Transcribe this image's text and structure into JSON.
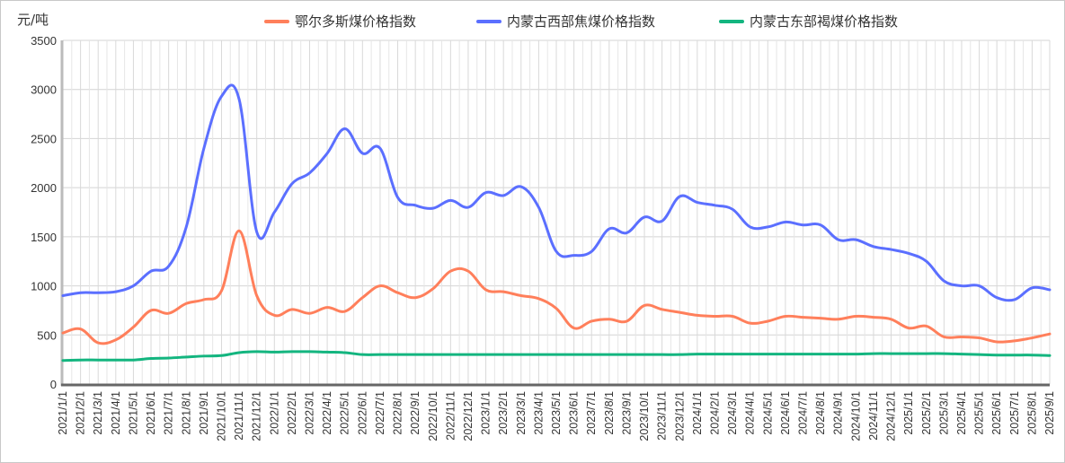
{
  "chart_data": {
    "type": "line",
    "ylabel": "元/吨",
    "ylim": [
      0,
      3500
    ],
    "yticks": [
      0,
      500,
      1000,
      1500,
      2000,
      2500,
      3000,
      3500
    ],
    "grid": true,
    "legend_position": "top",
    "categories": [
      "2021/1/1",
      "2021/2/1",
      "2021/3/1",
      "2021/4/1",
      "2021/5/1",
      "2021/6/1",
      "2021/7/1",
      "2021/8/1",
      "2021/9/1",
      "2021/10/1",
      "2021/11/1",
      "2021/12/1",
      "2022/1/1",
      "2022/2/1",
      "2022/3/1",
      "2022/4/1",
      "2022/5/1",
      "2022/6/1",
      "2022/7/1",
      "2022/8/1",
      "2022/9/1",
      "2022/10/1",
      "2022/11/1",
      "2022/12/1",
      "2023/1/1",
      "2023/2/1",
      "2023/3/1",
      "2023/4/1",
      "2023/5/1",
      "2023/6/1",
      "2023/7/1",
      "2023/8/1",
      "2023/9/1",
      "2023/10/1",
      "2023/11/1",
      "2023/12/1",
      "2024/1/1",
      "2024/2/1",
      "2024/3/1",
      "2024/4/1",
      "2024/5/1",
      "2024/6/1",
      "2024/7/1",
      "2024/8/1",
      "2024/9/1",
      "2024/10/1",
      "2024/11/1",
      "2024/12/1",
      "2025/1/1",
      "2025/2/1",
      "2025/3/1",
      "2025/4/1",
      "2025/5/1",
      "2025/6/1",
      "2025/7/1",
      "2025/8/1",
      "2025/9/1"
    ],
    "series": [
      {
        "name": "鄂尔多斯煤价格指数",
        "color": "#FF7F5B",
        "values": [
          520,
          560,
          420,
          450,
          580,
          750,
          720,
          820,
          860,
          950,
          1560,
          900,
          700,
          760,
          720,
          780,
          740,
          880,
          1000,
          930,
          880,
          970,
          1150,
          1150,
          960,
          940,
          900,
          870,
          770,
          570,
          640,
          660,
          640,
          800,
          760,
          730,
          700,
          690,
          690,
          620,
          640,
          690,
          680,
          670,
          660,
          690,
          680,
          660,
          570,
          590,
          480,
          480,
          470,
          430,
          440,
          470,
          510
        ]
      },
      {
        "name": "内蒙古西部焦煤价格指数",
        "color": "#5B6FFF",
        "values": [
          900,
          930,
          930,
          940,
          1000,
          1150,
          1200,
          1600,
          2400,
          2930,
          2900,
          1550,
          1750,
          2040,
          2150,
          2350,
          2600,
          2350,
          2400,
          1900,
          1820,
          1790,
          1870,
          1800,
          1950,
          1920,
          2010,
          1800,
          1350,
          1310,
          1350,
          1580,
          1540,
          1700,
          1660,
          1910,
          1850,
          1820,
          1780,
          1600,
          1600,
          1650,
          1620,
          1620,
          1470,
          1470,
          1400,
          1370,
          1330,
          1250,
          1050,
          1000,
          1000,
          880,
          860,
          980,
          960
        ]
      },
      {
        "name": "内蒙古东部褐煤价格指数",
        "color": "#13B57F",
        "values": [
          240,
          245,
          245,
          245,
          245,
          260,
          265,
          275,
          285,
          290,
          320,
          330,
          325,
          330,
          330,
          325,
          320,
          300,
          300,
          300,
          300,
          300,
          300,
          300,
          300,
          300,
          300,
          300,
          300,
          300,
          300,
          300,
          300,
          300,
          300,
          300,
          305,
          305,
          305,
          305,
          305,
          305,
          305,
          305,
          305,
          305,
          310,
          310,
          310,
          310,
          310,
          305,
          300,
          295,
          295,
          295,
          290
        ]
      }
    ]
  }
}
